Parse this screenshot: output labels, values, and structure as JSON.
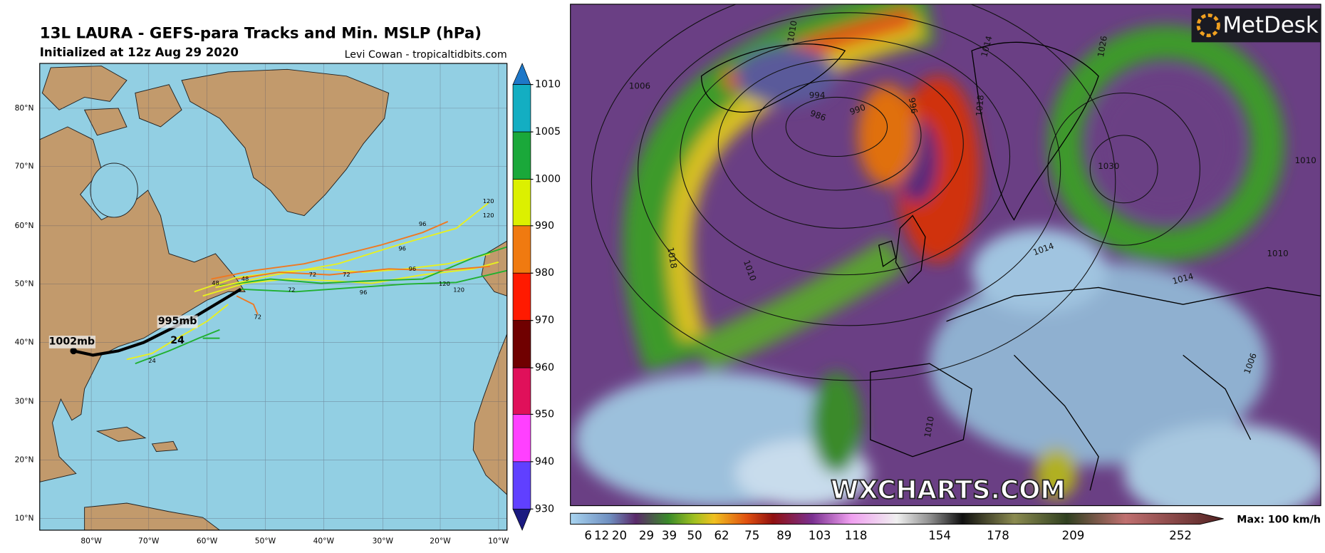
{
  "left_map": {
    "title": "13L LAURA - GEFS-para Tracks and Min. MSLP (hPa)",
    "subtitle": "Initialized at 12z Aug 29 2020",
    "credit": "Levi Cowan - tropicaltidbits.com",
    "lat_labels": [
      "80°N",
      "70°N",
      "60°N",
      "50°N",
      "40°N",
      "30°N",
      "20°N",
      "10°N"
    ],
    "lon_labels": [
      "80°W",
      "70°W",
      "60°W",
      "50°W",
      "40°W",
      "30°W",
      "20°W",
      "10°W"
    ],
    "colorbar_labels": [
      1010,
      1005,
      1000,
      990,
      980,
      970,
      960,
      950,
      940,
      930
    ],
    "annotations": [
      "1002mb",
      "995mb",
      "24"
    ],
    "track_labels": [
      "120",
      "120",
      "96",
      "96",
      "96",
      "96",
      "72",
      "72",
      "72",
      "48",
      "48",
      "120",
      "120",
      "72",
      "24"
    ]
  },
  "right_map": {
    "logo": "MetDesk",
    "watermark": "WXCHARTS.COM",
    "isobar_labels": [
      "1010",
      "1006",
      "994",
      "990",
      "986",
      "996",
      "1014",
      "1018",
      "1026",
      "1030",
      "1010",
      "1018",
      "1010",
      "1014",
      "1014",
      "1010",
      "1010",
      "1006"
    ],
    "colorbar_labels": [
      6,
      12,
      20,
      29,
      39,
      50,
      62,
      75,
      89,
      103,
      118,
      154,
      178,
      209,
      252
    ],
    "max_label": "Max: 100 km/h"
  }
}
